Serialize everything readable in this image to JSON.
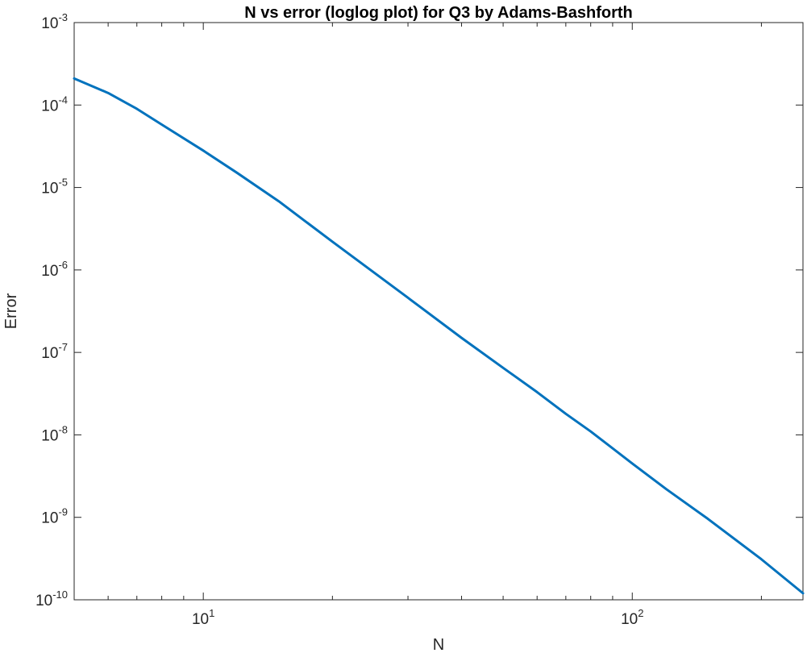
{
  "chart_data": {
    "type": "line",
    "title": "N vs error (loglog plot) for Q3 by Adams-Bashforth",
    "xlabel": "N",
    "ylabel": "Error",
    "xscale": "log",
    "yscale": "log",
    "xlim": [
      5,
      250
    ],
    "ylim": [
      1e-10,
      0.001
    ],
    "x_ticks": [
      {
        "base": "10",
        "exp": "1",
        "value": 10
      },
      {
        "base": "10",
        "exp": "2",
        "value": 100
      }
    ],
    "y_ticks": [
      {
        "base": "10",
        "exp": "-3",
        "value": 0.001
      },
      {
        "base": "10",
        "exp": "-4",
        "value": 0.0001
      },
      {
        "base": "10",
        "exp": "-5",
        "value": 1e-05
      },
      {
        "base": "10",
        "exp": "-6",
        "value": 1e-06
      },
      {
        "base": "10",
        "exp": "-7",
        "value": 1e-07
      },
      {
        "base": "10",
        "exp": "-8",
        "value": 1e-08
      },
      {
        "base": "10",
        "exp": "-9",
        "value": 1e-09
      },
      {
        "base": "10",
        "exp": "-10",
        "value": 1e-10
      }
    ],
    "grid": false,
    "line_color": "#0072BD",
    "series": [
      {
        "x": [
          5,
          6,
          7,
          8,
          10,
          12,
          15,
          20,
          25,
          30,
          40,
          50,
          60,
          70,
          80,
          100,
          120,
          150,
          200,
          250
        ],
        "values": [
          0.00021,
          0.00014,
          9e-05,
          5.8e-05,
          2.8e-05,
          1.5e-05,
          6.8e-06,
          2.2e-06,
          9.3e-07,
          4.6e-07,
          1.5e-07,
          6.5e-08,
          3.3e-08,
          1.8e-08,
          1.1e-08,
          4.5e-09,
          2.2e-09,
          9.6e-10,
          3.1e-10,
          1.2e-10
        ]
      }
    ]
  }
}
